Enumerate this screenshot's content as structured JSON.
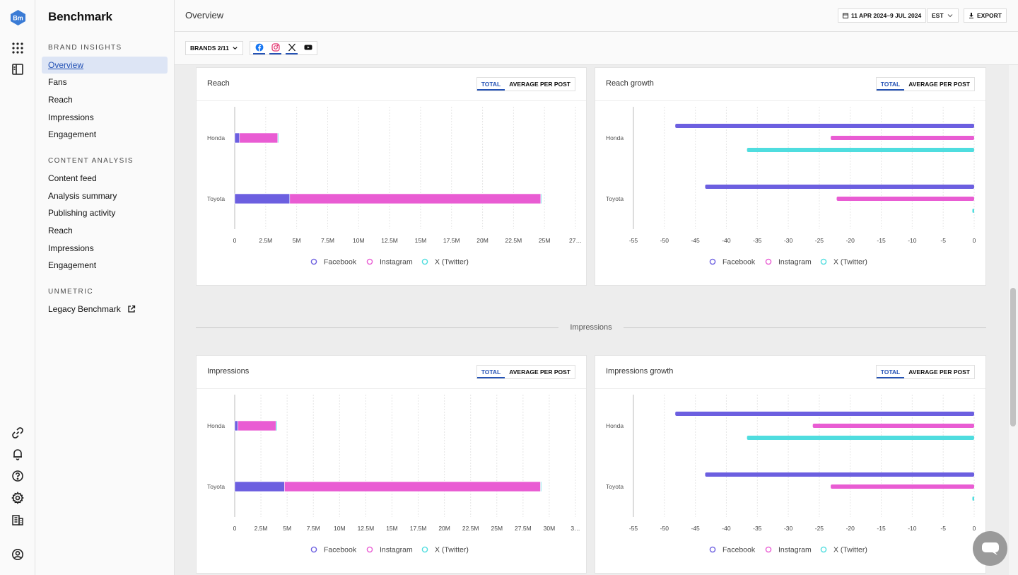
{
  "app": {
    "logo_text": "Bm",
    "name": "Benchmark"
  },
  "rail_icons": [
    "apps-grid-icon",
    "sidebar-panel-icon",
    "link-icon",
    "bell-icon",
    "help-icon",
    "settings-icon",
    "organization-icon",
    "user-circle-icon"
  ],
  "nav": {
    "sections": [
      {
        "title": "BRAND INSIGHTS",
        "items": [
          "Overview",
          "Fans",
          "Reach",
          "Impressions",
          "Engagement"
        ]
      },
      {
        "title": "CONTENT ANALYSIS",
        "items": [
          "Content feed",
          "Analysis summary",
          "Publishing activity",
          "Reach",
          "Impressions",
          "Engagement"
        ]
      },
      {
        "title": "UNMETRIC",
        "items": [
          "Legacy Benchmark"
        ]
      }
    ],
    "active_item": "Overview"
  },
  "header": {
    "title": "Overview",
    "date_range": "11 APR 2024–9 JUL 2024",
    "timezone": "EST",
    "export_label": "EXPORT"
  },
  "filters": {
    "brands_label": "BRANDS 2/11",
    "networks": [
      "facebook-icon",
      "instagram-icon",
      "x-twitter-icon",
      "youtube-icon"
    ]
  },
  "toggle": {
    "total": "TOTAL",
    "average": "AVERAGE PER POST"
  },
  "section_divider": "Impressions",
  "colors": {
    "facebook": "#6c5fe0",
    "instagram": "#e95cd3",
    "twitter": "#4fdddf",
    "accent": "#2452b5"
  },
  "chart_data": [
    {
      "type": "bar",
      "stacked": true,
      "orientation": "horizontal",
      "title": "Reach",
      "categories": [
        "Honda",
        "Toyota"
      ],
      "series": [
        {
          "name": "Facebook",
          "values": [
            0.4,
            4.6
          ]
        },
        {
          "name": "Instagram",
          "values": [
            3.2,
            21.0
          ]
        },
        {
          "name": "X (Twitter)",
          "values": [
            0.05,
            0.02
          ]
        }
      ],
      "xlim": [
        0,
        28.5
      ],
      "x_ticks": [
        "0",
        "2.5M",
        "5M",
        "7.5M",
        "10M",
        "12.5M",
        "15M",
        "17.5M",
        "20M",
        "22.5M",
        "25M",
        "27…"
      ],
      "legend": [
        "Facebook",
        "Instagram",
        "X (Twitter)"
      ],
      "grid": true
    },
    {
      "type": "bar",
      "orientation": "horizontal",
      "title": "Reach growth",
      "categories": [
        "Honda",
        "Toyota"
      ],
      "series": [
        {
          "name": "Facebook",
          "values": [
            -50,
            -45
          ]
        },
        {
          "name": "Instagram",
          "values": [
            -24,
            -23
          ]
        },
        {
          "name": "X (Twitter)",
          "values": [
            -38,
            -0.3
          ]
        }
      ],
      "xlim": [
        -57,
        0
      ],
      "x_ticks": [
        "-55",
        "-50",
        "-45",
        "-40",
        "-35",
        "-30",
        "-25",
        "-20",
        "-15",
        "-10",
        "-5",
        "0"
      ],
      "legend": [
        "Facebook",
        "Instagram",
        "X (Twitter)"
      ],
      "grid": true
    },
    {
      "type": "bar",
      "stacked": true,
      "orientation": "horizontal",
      "title": "Impressions",
      "categories": [
        "Honda",
        "Toyota"
      ],
      "series": [
        {
          "name": "Facebook",
          "values": [
            0.3,
            4.7
          ]
        },
        {
          "name": "Instagram",
          "values": [
            3.6,
            24.2
          ]
        },
        {
          "name": "X (Twitter)",
          "values": [
            0.1,
            0.02
          ]
        }
      ],
      "xlim": [
        0,
        32.2
      ],
      "x_ticks": [
        "0",
        "2.5M",
        "5M",
        "7.5M",
        "10M",
        "12.5M",
        "15M",
        "17.5M",
        "20M",
        "22.5M",
        "25M",
        "27.5M",
        "30M",
        "3…"
      ],
      "legend": [
        "Facebook",
        "Instagram",
        "X (Twitter)"
      ],
      "grid": true
    },
    {
      "type": "bar",
      "orientation": "horizontal",
      "title": "Impressions growth",
      "categories": [
        "Honda",
        "Toyota"
      ],
      "series": [
        {
          "name": "Facebook",
          "values": [
            -50,
            -45
          ]
        },
        {
          "name": "Instagram",
          "values": [
            -27,
            -24
          ]
        },
        {
          "name": "X (Twitter)",
          "values": [
            -38,
            -0.3
          ]
        }
      ],
      "xlim": [
        -57,
        0
      ],
      "x_ticks": [
        "-55",
        "-50",
        "-45",
        "-40",
        "-35",
        "-30",
        "-25",
        "-20",
        "-15",
        "-10",
        "-5",
        "0"
      ],
      "legend": [
        "Facebook",
        "Instagram",
        "X (Twitter)"
      ],
      "grid": true
    }
  ]
}
